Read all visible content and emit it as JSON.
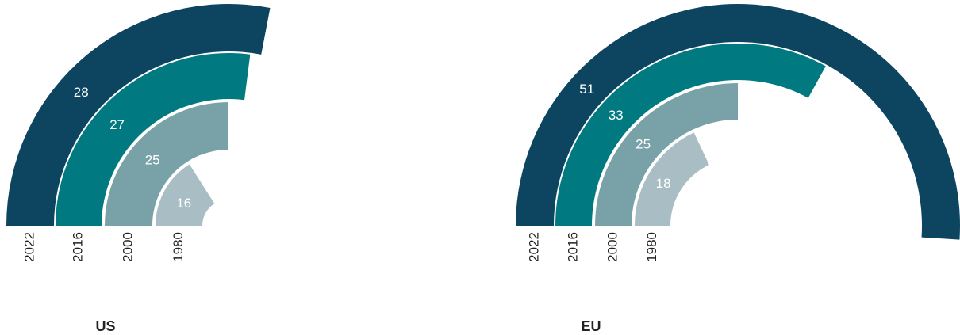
{
  "chart_data": [
    {
      "type": "radial_bar",
      "title": "US",
      "categories": [
        "2022",
        "2016",
        "2000",
        "1980"
      ],
      "values": [
        28,
        27,
        25,
        16
      ],
      "colors": [
        "#0d4560",
        "#007a80",
        "#78a2a8",
        "#a9bec4"
      ],
      "ylim": [
        0,
        50
      ]
    },
    {
      "type": "radial_bar",
      "title": "EU",
      "categories": [
        "2022",
        "2016",
        "2000",
        "1980"
      ],
      "values": [
        51,
        33,
        25,
        18
      ],
      "colors": [
        "#0d4560",
        "#007a80",
        "#78a2a8",
        "#a9bec4"
      ],
      "ylim": [
        0,
        50
      ]
    }
  ]
}
